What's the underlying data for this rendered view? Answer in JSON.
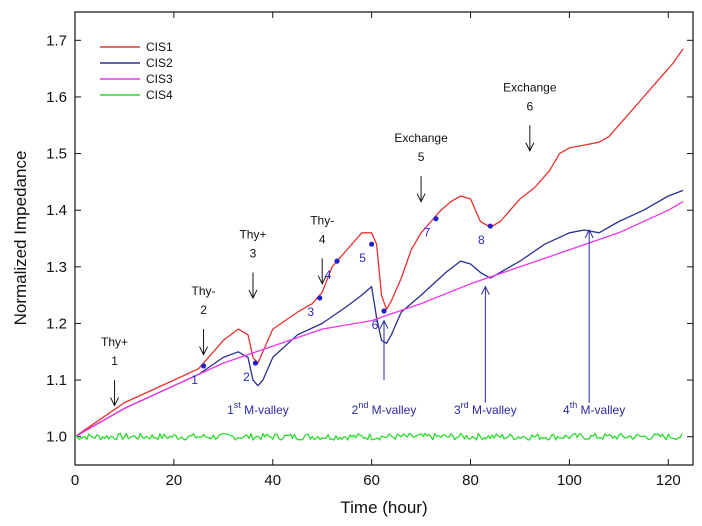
{
  "chart_data": {
    "type": "line",
    "xlabel": "Time (hour)",
    "ylabel": "Normalized Impedance",
    "xlim": [
      0,
      125
    ],
    "ylim": [
      0.95,
      1.75
    ],
    "xticks": [
      "0",
      "20",
      "40",
      "60",
      "80",
      "100",
      "120"
    ],
    "yticks": [
      "1.0",
      "1.1",
      "1.2",
      "1.3",
      "1.4",
      "1.5",
      "1.6",
      "1.7"
    ],
    "legend_position": "top-left",
    "series": [
      {
        "name": "CIS1",
        "color": "#e8312f",
        "x": [
          0,
          5,
          10,
          15,
          20,
          25,
          28,
          30,
          33,
          35,
          36,
          37,
          40,
          45,
          48,
          50,
          52,
          55,
          58,
          60,
          61,
          62,
          63,
          64,
          66,
          68,
          70,
          72,
          74,
          76,
          78,
          80,
          82,
          84,
          86,
          88,
          90,
          93,
          96,
          98,
          100,
          103,
          106,
          108,
          110,
          113,
          116,
          119,
          121,
          123
        ],
        "y": [
          1.0,
          1.03,
          1.06,
          1.08,
          1.1,
          1.12,
          1.15,
          1.17,
          1.19,
          1.18,
          1.14,
          1.13,
          1.19,
          1.22,
          1.235,
          1.255,
          1.3,
          1.33,
          1.36,
          1.36,
          1.34,
          1.25,
          1.225,
          1.24,
          1.28,
          1.33,
          1.36,
          1.38,
          1.4,
          1.415,
          1.425,
          1.42,
          1.38,
          1.37,
          1.38,
          1.4,
          1.42,
          1.44,
          1.47,
          1.5,
          1.51,
          1.515,
          1.52,
          1.53,
          1.55,
          1.58,
          1.61,
          1.64,
          1.66,
          1.685
        ]
      },
      {
        "name": "CIS2",
        "color": "#2b2f8f",
        "x": [
          0,
          5,
          10,
          15,
          20,
          25,
          30,
          33,
          35,
          36,
          37,
          38,
          40,
          45,
          50,
          55,
          58,
          60,
          61,
          62,
          63,
          64,
          66,
          70,
          75,
          78,
          80,
          82,
          84,
          86,
          90,
          95,
          100,
          103,
          106,
          110,
          115,
          120,
          123
        ],
        "y": [
          1.0,
          1.025,
          1.05,
          1.07,
          1.09,
          1.11,
          1.14,
          1.15,
          1.14,
          1.1,
          1.09,
          1.1,
          1.14,
          1.18,
          1.2,
          1.23,
          1.25,
          1.265,
          1.21,
          1.17,
          1.165,
          1.18,
          1.22,
          1.25,
          1.29,
          1.31,
          1.305,
          1.29,
          1.28,
          1.29,
          1.31,
          1.34,
          1.36,
          1.365,
          1.36,
          1.38,
          1.4,
          1.425,
          1.435
        ]
      },
      {
        "name": "CIS3",
        "color": "#ee34ee",
        "x": [
          0,
          10,
          20,
          30,
          40,
          50,
          60,
          70,
          80,
          90,
          100,
          110,
          120,
          123
        ],
        "y": [
          1.0,
          1.05,
          1.09,
          1.13,
          1.16,
          1.19,
          1.205,
          1.235,
          1.27,
          1.3,
          1.33,
          1.36,
          1.4,
          1.415
        ]
      },
      {
        "name": "CIS4",
        "color": "#2bdc2b",
        "x": [
          0,
          123
        ],
        "y": [
          1.0,
          1.0
        ]
      }
    ],
    "annotations": [
      {
        "lines": [
          "Thy+",
          "1"
        ],
        "x": 8,
        "arrow_top": 1.1,
        "arrow_bottom": 1.055
      },
      {
        "lines": [
          "Thy-",
          "2"
        ],
        "x": 26,
        "arrow_top": 1.19,
        "arrow_bottom": 1.145
      },
      {
        "lines": [
          "Thy+",
          "3"
        ],
        "x": 36,
        "arrow_top": 1.29,
        "arrow_bottom": 1.245
      },
      {
        "lines": [
          "Thy-",
          "4"
        ],
        "x": 50,
        "arrow_top": 1.315,
        "arrow_bottom": 1.27
      },
      {
        "lines": [
          "Exchange",
          "5"
        ],
        "x": 70,
        "arrow_top": 1.46,
        "arrow_bottom": 1.415
      },
      {
        "lines": [
          "Exchange",
          "6"
        ],
        "x": 92,
        "arrow_top": 1.55,
        "arrow_bottom": 1.505
      }
    ],
    "valleys": [
      {
        "ordinal": "1",
        "sup": "st",
        "suffix": " M-valley",
        "x": 37
      },
      {
        "ordinal": "2",
        "sup": "nd",
        "suffix": " M-valley",
        "x": 62.5
      },
      {
        "ordinal": "3",
        "sup": "rd",
        "suffix": " M-valley",
        "x": 83
      },
      {
        "ordinal": "4",
        "sup": "th",
        "suffix": " M-valley",
        "x": 105
      }
    ],
    "valley_arrows": [
      {
        "x": 62.5,
        "from": 1.1,
        "to": 1.205
      },
      {
        "x": 83,
        "from": 1.06,
        "to": 1.265
      },
      {
        "x": 104,
        "from": 1.06,
        "to": 1.365
      }
    ],
    "points": [
      {
        "label": "1",
        "x": 26,
        "y": 1.125
      },
      {
        "label": "2",
        "x": 36.5,
        "y": 1.13
      },
      {
        "label": "3",
        "x": 49.5,
        "y": 1.245
      },
      {
        "label": "4",
        "x": 53,
        "y": 1.31
      },
      {
        "label": "5",
        "x": 60,
        "y": 1.34
      },
      {
        "label": "6",
        "x": 62.5,
        "y": 1.222
      },
      {
        "label": "7",
        "x": 73,
        "y": 1.385
      },
      {
        "label": "8",
        "x": 84,
        "y": 1.372
      }
    ],
    "point_color": "#2222cc"
  }
}
